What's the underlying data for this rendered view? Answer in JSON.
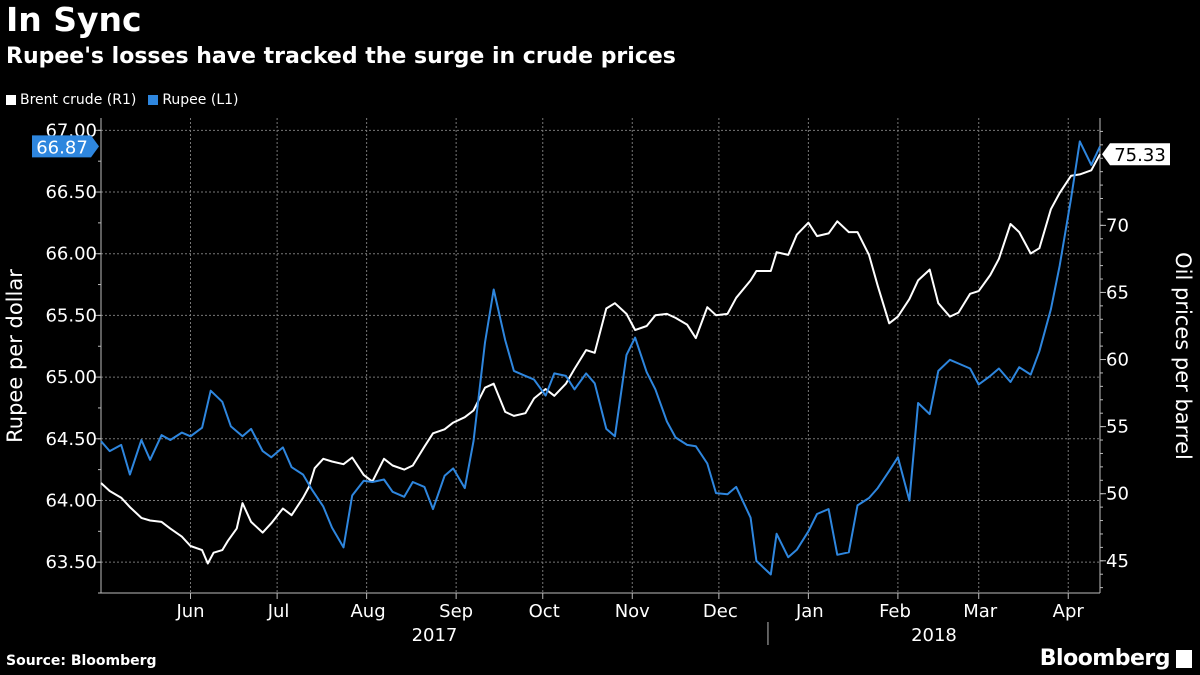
{
  "header": {
    "title": "In Sync",
    "subtitle": "Rupee's losses have tracked the surge in crude prices"
  },
  "legend": [
    {
      "label": "Brent crude (R1)",
      "color": "#ffffff"
    },
    {
      "label": "Rupee (L1)",
      "color": "#2e86de"
    }
  ],
  "footer": {
    "source": "Source: Bloomberg",
    "brand": "Bloomberg"
  },
  "chart_data": {
    "type": "line",
    "left_axis": {
      "label": "Rupee per dollar",
      "ylim": [
        63.25,
        67.1
      ],
      "ticks": [
        "63.50",
        "64.00",
        "64.50",
        "65.00",
        "65.50",
        "66.00",
        "66.50",
        "67.00"
      ],
      "tick_values": [
        63.5,
        64.0,
        64.5,
        65.0,
        65.5,
        66.0,
        66.5,
        67.0
      ]
    },
    "right_axis": {
      "label": "Oil prices per barrel",
      "ylim": [
        42.6,
        78.0
      ],
      "ticks": [
        "45",
        "50",
        "55",
        "60",
        "65",
        "70"
      ],
      "tick_values": [
        45,
        50,
        55,
        60,
        65,
        70
      ]
    },
    "x_axis": {
      "months": [
        "Jun",
        "Jul",
        "Aug",
        "Sep",
        "Oct",
        "Nov",
        "Dec",
        "Jan",
        "Feb",
        "Mar",
        "Apr"
      ],
      "years": [
        "2017",
        "2018"
      ],
      "range": [
        "2017-05-15",
        "2018-04-26"
      ]
    },
    "grid": true,
    "series": [
      {
        "name": "Brent crude (R1)",
        "axis": "right",
        "color": "#ffffff",
        "last_label": "75.33",
        "x": [
          "2017-05-15",
          "2017-05-18",
          "2017-05-22",
          "2017-05-25",
          "2017-05-29",
          "2017-06-01",
          "2017-06-05",
          "2017-06-08",
          "2017-06-12",
          "2017-06-15",
          "2017-06-19",
          "2017-06-21",
          "2017-06-23",
          "2017-06-26",
          "2017-06-28",
          "2017-07-01",
          "2017-07-03",
          "2017-07-06",
          "2017-07-10",
          "2017-07-13",
          "2017-07-17",
          "2017-07-20",
          "2017-07-24",
          "2017-07-26",
          "2017-07-28",
          "2017-07-31",
          "2017-08-03",
          "2017-08-07",
          "2017-08-10",
          "2017-08-14",
          "2017-08-17",
          "2017-08-21",
          "2017-08-24",
          "2017-08-28",
          "2017-08-31",
          "2017-09-04",
          "2017-09-07",
          "2017-09-11",
          "2017-09-14",
          "2017-09-18",
          "2017-09-21",
          "2017-09-25",
          "2017-09-28",
          "2017-10-02",
          "2017-10-05",
          "2017-10-09",
          "2017-10-12",
          "2017-10-16",
          "2017-10-19",
          "2017-10-23",
          "2017-10-26",
          "2017-10-30",
          "2017-11-02",
          "2017-11-06",
          "2017-11-09",
          "2017-11-13",
          "2017-11-16",
          "2017-11-20",
          "2017-11-23",
          "2017-11-27",
          "2017-11-30",
          "2017-12-04",
          "2017-12-07",
          "2017-12-11",
          "2017-12-14",
          "2017-12-18",
          "2017-12-21",
          "2017-12-26",
          "2017-12-28",
          "2018-01-02",
          "2018-01-04",
          "2018-01-08",
          "2018-01-11",
          "2018-01-15",
          "2018-01-18",
          "2018-01-22",
          "2018-01-25",
          "2018-01-29",
          "2018-02-01",
          "2018-02-05",
          "2018-02-08",
          "2018-02-12",
          "2018-02-15",
          "2018-02-19",
          "2018-02-22",
          "2018-02-26",
          "2018-03-01",
          "2018-03-05",
          "2018-03-08",
          "2018-03-12",
          "2018-03-15",
          "2018-03-19",
          "2018-03-22",
          "2018-03-26",
          "2018-03-29",
          "2018-04-02",
          "2018-04-05",
          "2018-04-09",
          "2018-04-12",
          "2018-04-16",
          "2018-04-19",
          "2018-04-23",
          "2018-04-26"
        ],
        "y": [
          50.8,
          50.2,
          49.7,
          49.0,
          48.2,
          48.0,
          47.9,
          47.4,
          46.8,
          46.1,
          45.8,
          44.8,
          45.6,
          45.8,
          46.5,
          47.4,
          49.3,
          47.9,
          47.1,
          47.8,
          48.9,
          48.4,
          49.7,
          50.5,
          51.9,
          52.6,
          52.4,
          52.2,
          52.7,
          51.4,
          50.9,
          52.6,
          52.1,
          51.8,
          52.1,
          53.5,
          54.5,
          54.8,
          55.3,
          55.7,
          56.2,
          57.9,
          58.2,
          56.1,
          55.8,
          56.0,
          57.1,
          57.8,
          57.3,
          58.2,
          59.3,
          60.7,
          60.5,
          63.8,
          64.2,
          63.4,
          62.2,
          62.5,
          63.3,
          63.4,
          63.1,
          62.6,
          61.6,
          63.9,
          63.3,
          63.4,
          64.6,
          65.9,
          66.6,
          66.6,
          68.0,
          67.8,
          69.3,
          70.2,
          69.2,
          69.4,
          70.3,
          69.5,
          69.5,
          67.8,
          65.5,
          62.7,
          63.2,
          64.5,
          65.9,
          66.7,
          64.2,
          63.2,
          63.5,
          64.9,
          65.1,
          66.3,
          67.5,
          70.1,
          69.5,
          67.9,
          68.3,
          71.2,
          72.4,
          73.7,
          73.8,
          74.1,
          75.3
        ]
      },
      {
        "name": "Rupee (L1)",
        "axis": "left",
        "color": "#2e86de",
        "last_label": "66.87",
        "x": [
          "2017-05-15",
          "2017-05-18",
          "2017-05-22",
          "2017-05-25",
          "2017-05-29",
          "2017-06-01",
          "2017-06-05",
          "2017-06-08",
          "2017-06-12",
          "2017-06-15",
          "2017-06-19",
          "2017-06-22",
          "2017-06-26",
          "2017-06-29",
          "2017-07-03",
          "2017-07-06",
          "2017-07-10",
          "2017-07-13",
          "2017-07-17",
          "2017-07-20",
          "2017-07-24",
          "2017-07-27",
          "2017-07-31",
          "2017-08-03",
          "2017-08-07",
          "2017-08-10",
          "2017-08-14",
          "2017-08-17",
          "2017-08-21",
          "2017-08-24",
          "2017-08-28",
          "2017-08-31",
          "2017-09-04",
          "2017-09-07",
          "2017-09-11",
          "2017-09-14",
          "2017-09-18",
          "2017-09-21",
          "2017-09-25",
          "2017-09-28",
          "2017-10-02",
          "2017-10-05",
          "2017-10-09",
          "2017-10-12",
          "2017-10-16",
          "2017-10-19",
          "2017-10-23",
          "2017-10-26",
          "2017-10-30",
          "2017-11-02",
          "2017-11-06",
          "2017-11-09",
          "2017-11-13",
          "2017-11-16",
          "2017-11-20",
          "2017-11-23",
          "2017-11-27",
          "2017-11-30",
          "2017-12-04",
          "2017-12-07",
          "2017-12-11",
          "2017-12-14",
          "2017-12-18",
          "2017-12-21",
          "2017-12-26",
          "2017-12-28",
          "2018-01-02",
          "2018-01-04",
          "2018-01-08",
          "2018-01-11",
          "2018-01-15",
          "2018-01-18",
          "2018-01-22",
          "2018-01-25",
          "2018-01-29",
          "2018-02-01",
          "2018-02-05",
          "2018-02-08",
          "2018-02-12",
          "2018-02-15",
          "2018-02-19",
          "2018-02-22",
          "2018-02-26",
          "2018-03-01",
          "2018-03-05",
          "2018-03-08",
          "2018-03-12",
          "2018-03-15",
          "2018-03-19",
          "2018-03-22",
          "2018-03-26",
          "2018-03-29",
          "2018-04-02",
          "2018-04-05",
          "2018-04-09",
          "2018-04-12",
          "2018-04-16",
          "2018-04-19",
          "2018-04-23",
          "2018-04-26"
        ],
        "y": [
          64.48,
          64.4,
          64.45,
          64.21,
          64.49,
          64.33,
          64.53,
          64.49,
          64.55,
          64.52,
          64.59,
          64.89,
          64.8,
          64.6,
          64.52,
          64.58,
          64.4,
          64.35,
          64.43,
          64.27,
          64.21,
          64.09,
          63.95,
          63.78,
          63.62,
          64.04,
          64.16,
          64.15,
          64.17,
          64.07,
          64.03,
          64.15,
          64.11,
          63.93,
          64.2,
          64.26,
          64.1,
          64.48,
          65.28,
          65.71,
          65.3,
          65.05,
          65.01,
          64.98,
          64.85,
          65.03,
          65.01,
          64.9,
          65.03,
          64.95,
          64.58,
          64.52,
          65.18,
          65.32,
          65.04,
          64.9,
          64.64,
          64.51,
          64.45,
          64.44,
          64.3,
          64.06,
          64.05,
          64.11,
          63.86,
          63.51,
          63.4,
          63.73,
          63.54,
          63.6,
          63.75,
          63.89,
          63.93,
          63.56,
          63.58,
          63.96,
          64.02,
          64.1,
          64.24,
          64.35,
          64.0,
          64.79,
          64.7,
          65.05,
          65.14,
          65.11,
          65.07,
          64.94,
          65.01,
          65.07,
          64.96,
          65.08,
          65.02,
          65.21,
          65.55,
          65.9,
          66.45,
          66.91,
          66.72,
          66.87
        ]
      }
    ]
  }
}
